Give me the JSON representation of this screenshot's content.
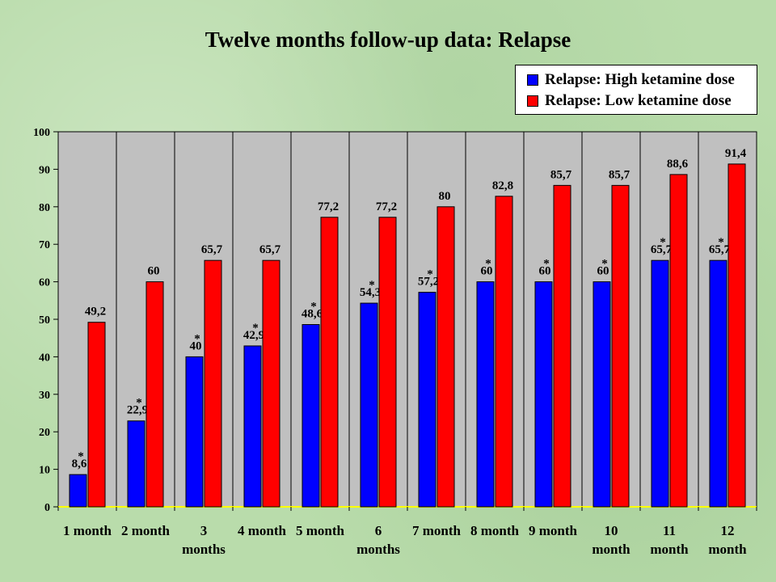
{
  "chart_data": {
    "type": "bar",
    "title": "Twelve months follow-up data: Relapse",
    "xlabel": "",
    "ylabel": "",
    "ylim": [
      0,
      100
    ],
    "yticks": [
      "0",
      "10",
      "20",
      "30",
      "40",
      "50",
      "60",
      "70",
      "80",
      "90",
      "100"
    ],
    "grid": "vertical",
    "legend_position": "top-right",
    "categories": [
      [
        "1 month"
      ],
      [
        "2 month"
      ],
      [
        "3",
        "months"
      ],
      [
        "4 month"
      ],
      [
        "5 month"
      ],
      [
        "6",
        "months"
      ],
      [
        "7 month"
      ],
      [
        "8 month"
      ],
      [
        "9 month"
      ],
      [
        "10",
        "month"
      ],
      [
        "11",
        "month"
      ],
      [
        "12",
        "month"
      ]
    ],
    "series": [
      {
        "name": "Relapse: High ketamine dose",
        "color": "#0000ff",
        "values": [
          8.6,
          22.9,
          40,
          42.9,
          48.6,
          54.3,
          57.2,
          60,
          60,
          60,
          65.7,
          65.7
        ],
        "labels": [
          "8,6",
          "22,9",
          "40",
          "42,9",
          "48,6",
          "54,3",
          "57,2",
          "60",
          "60",
          "60",
          "65,7",
          "65,7"
        ],
        "marks": [
          "*",
          "*",
          "*",
          "*",
          "*",
          "*",
          "*",
          "*",
          "*",
          "*",
          "*",
          "*"
        ]
      },
      {
        "name": "Relapse: Low ketamine dose",
        "color": "#ff0000",
        "values": [
          49.2,
          60,
          65.7,
          65.7,
          77.2,
          77.2,
          80,
          82.8,
          85.7,
          85.7,
          88.6,
          91.4
        ],
        "labels": [
          "49,2",
          "60",
          "65,7",
          "65,7",
          "77,2",
          "77,2",
          "80",
          "82,8",
          "85,7",
          "85,7",
          "88,6",
          "91,4"
        ]
      }
    ],
    "plot_background": "#c0c0c0"
  }
}
